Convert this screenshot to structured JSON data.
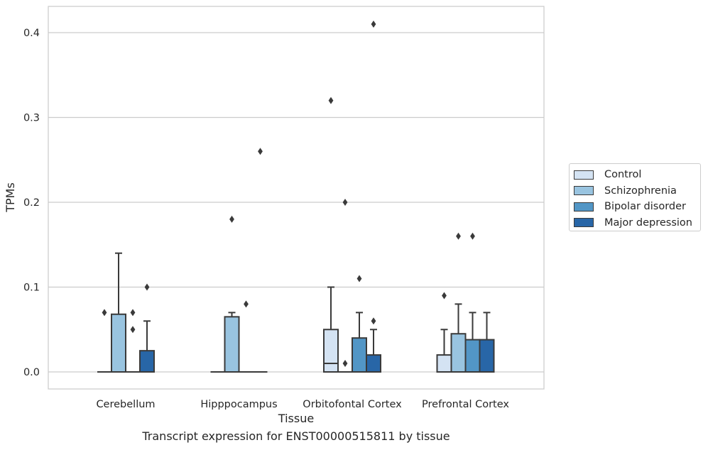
{
  "caption": "Transcript expression for ENST00000515811 by tissue",
  "colors": {
    "Control": "#d4e3f3",
    "Schizophrenia": "#99c4e0",
    "Bipolar disorder": "#5296c6",
    "Major depression": "#2866a7",
    "line": "#3a3a3a",
    "grid": "#cccccc"
  },
  "chart_data": {
    "type": "box",
    "xlabel": "Tissue",
    "ylabel": "TPMs",
    "ylim": [
      -0.02,
      0.43
    ],
    "yticks": [
      0.0,
      0.1,
      0.2,
      0.3,
      0.4
    ],
    "ytick_labels": [
      "0.0",
      "0.1",
      "0.2",
      "0.3",
      "0.4"
    ],
    "categories": [
      "Cerebellum",
      "Hipppocampus",
      "Orbitofontal Cortex",
      "Prefrontal Cortex"
    ],
    "grid": true,
    "legend_position": "right",
    "series": [
      {
        "name": "Control",
        "boxes": [
          {
            "q1": 0,
            "median": 0,
            "q3": 0,
            "whislo": 0,
            "whishi": 0,
            "fliers": [
              0.07
            ]
          },
          {
            "q1": 0,
            "median": 0,
            "q3": 0,
            "whislo": 0,
            "whishi": 0,
            "fliers": []
          },
          {
            "q1": 0,
            "median": 0.01,
            "q3": 0.05,
            "whislo": 0,
            "whishi": 0.1,
            "fliers": [
              0.32
            ]
          },
          {
            "q1": 0,
            "median": 0,
            "q3": 0.02,
            "whislo": 0,
            "whishi": 0.05,
            "fliers": [
              0.09
            ]
          }
        ]
      },
      {
        "name": "Schizophrenia",
        "boxes": [
          {
            "q1": 0,
            "median": 0,
            "q3": 0.068,
            "whislo": 0,
            "whishi": 0.14,
            "fliers": []
          },
          {
            "q1": 0,
            "median": 0,
            "q3": 0.065,
            "whislo": 0,
            "whishi": 0.07,
            "fliers": [
              0.18
            ]
          },
          {
            "q1": 0,
            "median": 0,
            "q3": 0,
            "whislo": 0,
            "whishi": 0,
            "fliers": [
              0.01,
              0.2
            ]
          },
          {
            "q1": 0,
            "median": 0,
            "q3": 0.045,
            "whislo": 0,
            "whishi": 0.08,
            "fliers": [
              0.16
            ]
          }
        ]
      },
      {
        "name": "Bipolar disorder",
        "boxes": [
          {
            "q1": 0,
            "median": 0,
            "q3": 0,
            "whislo": 0,
            "whishi": 0,
            "fliers": [
              0.05,
              0.07
            ]
          },
          {
            "q1": 0,
            "median": 0,
            "q3": 0,
            "whislo": 0,
            "whishi": 0,
            "fliers": [
              0.08
            ]
          },
          {
            "q1": 0,
            "median": 0,
            "q3": 0.04,
            "whislo": 0,
            "whishi": 0.07,
            "fliers": [
              0.11
            ]
          },
          {
            "q1": 0,
            "median": 0,
            "q3": 0.038,
            "whislo": 0,
            "whishi": 0.07,
            "fliers": [
              0.16
            ]
          }
        ]
      },
      {
        "name": "Major depression",
        "boxes": [
          {
            "q1": 0,
            "median": 0,
            "q3": 0.025,
            "whislo": 0,
            "whishi": 0.06,
            "fliers": [
              0.1
            ]
          },
          {
            "q1": 0,
            "median": 0,
            "q3": 0,
            "whislo": 0,
            "whishi": 0,
            "fliers": [
              0.26
            ]
          },
          {
            "q1": 0,
            "median": 0,
            "q3": 0.02,
            "whislo": 0,
            "whishi": 0.05,
            "fliers": [
              0.06,
              0.41
            ]
          },
          {
            "q1": 0,
            "median": 0,
            "q3": 0.038,
            "whislo": 0,
            "whishi": 0.07,
            "fliers": []
          }
        ]
      }
    ]
  }
}
